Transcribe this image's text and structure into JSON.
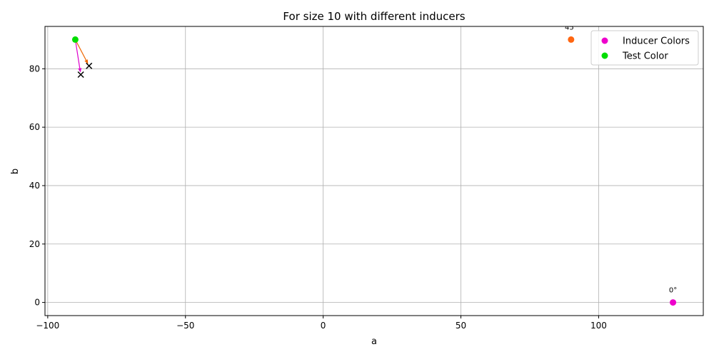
{
  "chart_data": {
    "type": "scatter",
    "title": "For size 10 with different inducers",
    "xlabel": "a",
    "ylabel": "b",
    "xlim": [
      -101,
      138
    ],
    "ylim": [
      -4.5,
      94.5
    ],
    "xticks": [
      -100,
      -50,
      0,
      50,
      100
    ],
    "yticks": [
      0,
      20,
      40,
      60,
      80
    ],
    "grid": true,
    "legend_position": "top-right",
    "legend": [
      {
        "label": "Inducer Colors",
        "color": "#ee00cc"
      },
      {
        "label": "Test Color",
        "color": "#00dd00"
      }
    ],
    "inducers": [
      {
        "label": "0°",
        "a": 127,
        "b": 0,
        "color": "#ee00cc"
      },
      {
        "label": "45°",
        "a": 90,
        "b": 90,
        "color": "#ff6611"
      }
    ],
    "test_color": {
      "a": -90,
      "b": 90,
      "color": "#00dd00"
    },
    "shifts": [
      {
        "inducer": "0°",
        "from": [
          -90,
          90
        ],
        "to": [
          -88,
          78
        ],
        "color": "#dd00cc"
      },
      {
        "inducer": "45°",
        "from": [
          -90,
          90
        ],
        "to": [
          -85,
          81
        ],
        "color": "#ee6600"
      }
    ]
  }
}
